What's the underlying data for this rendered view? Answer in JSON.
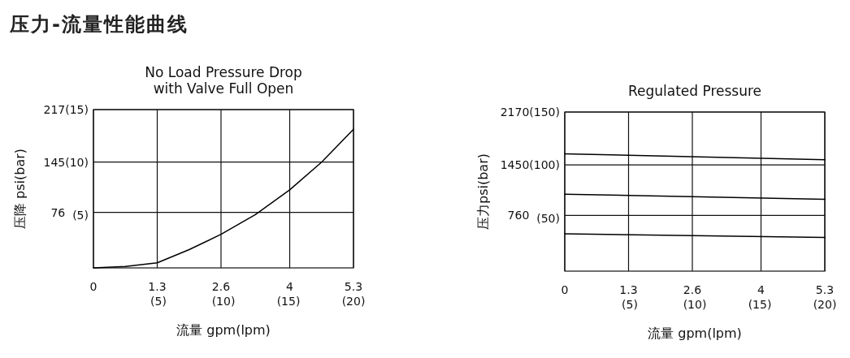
{
  "chart_data": [
    {
      "type": "line",
      "title": "No Load Pressure Drop\nwith Valve Full Open",
      "xlabel": "流量 gpm(lpm)",
      "ylabel": "压降 psi(bar)",
      "annotations": [
        "压力-流量性能曲线"
      ],
      "x": [
        0,
        0.65,
        1.3,
        1.95,
        2.6,
        3.3,
        4,
        4.65,
        5.3
      ],
      "series": [
        {
          "color": "#000000",
          "values": [
            0,
            2,
            7,
            25,
            46,
            73,
            107,
            145,
            190
          ]
        }
      ],
      "xlim": [
        0,
        5.3
      ],
      "ylim": [
        0,
        217
      ],
      "xticks": [
        0,
        1.3,
        2.6,
        4,
        5.3
      ],
      "x2lim": [
        0,
        20
      ],
      "x2ticks": [
        {
          "value": 5,
          "label": "(5)"
        },
        {
          "value": 10,
          "label": "(10)"
        },
        {
          "value": 15,
          "label": "(15)"
        },
        {
          "value": 20,
          "label": "(20)"
        }
      ],
      "yticks": [
        76,
        145,
        217
      ],
      "y2lim": [
        0,
        15.0
      ],
      "y2ticks": [
        {
          "value": 5,
          "label": "(5)"
        },
        {
          "value": 10,
          "label": "(10)"
        },
        {
          "value": 15,
          "label": "(15)"
        }
      ],
      "grid": true
    },
    {
      "type": "line",
      "title": "Regulated Pressure",
      "xlabel": "流量 gpm(lpm)",
      "ylabel": "压力psi(bar)",
      "x": [
        0,
        5.3
      ],
      "series": [
        {
          "color": "#000000",
          "values": [
            1600,
            1520
          ]
        },
        {
          "color": "#000000",
          "values": [
            1050,
            980
          ]
        },
        {
          "color": "#000000",
          "values": [
            510,
            460
          ]
        }
      ],
      "xlim": [
        0,
        5.3
      ],
      "ylim": [
        0,
        2170
      ],
      "xticks": [
        0,
        1.3,
        2.6,
        4,
        5.3
      ],
      "x2lim": [
        0,
        20
      ],
      "x2ticks": [
        {
          "value": 5,
          "label": "(5)"
        },
        {
          "value": 10,
          "label": "(10)"
        },
        {
          "value": 15,
          "label": "(15)"
        },
        {
          "value": 20,
          "label": "(20)"
        }
      ],
      "yticks": [
        760,
        1450,
        2170
      ],
      "y2lim": [
        0,
        150
      ],
      "y2ticks": [
        {
          "value": 50,
          "label": "(50)"
        },
        {
          "value": 100,
          "label": "(100)"
        },
        {
          "value": 150,
          "label": "(150)"
        }
      ],
      "grid": true
    }
  ]
}
